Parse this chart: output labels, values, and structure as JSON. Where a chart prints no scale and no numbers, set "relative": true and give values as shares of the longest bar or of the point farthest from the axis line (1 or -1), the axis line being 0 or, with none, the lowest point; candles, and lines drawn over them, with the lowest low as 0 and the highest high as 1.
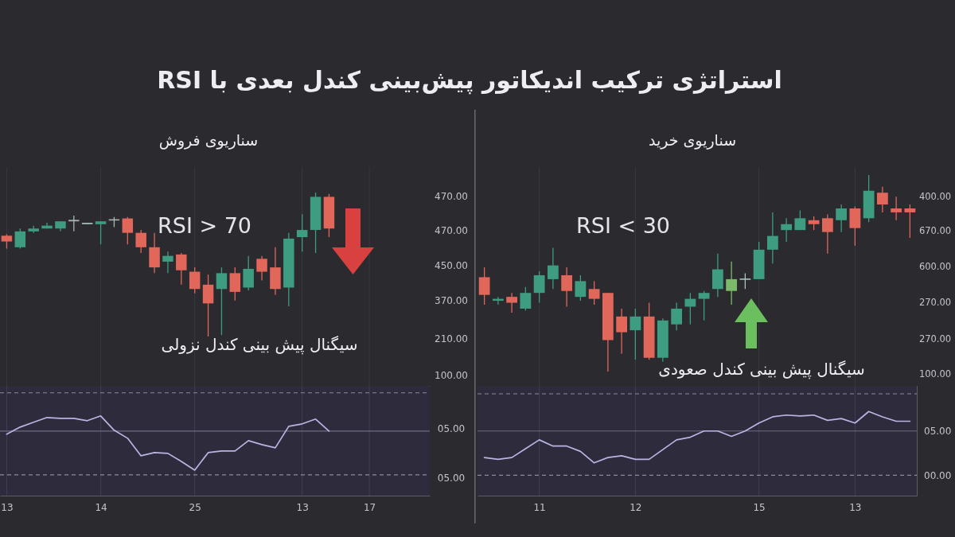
{
  "chart_data": [
    {
      "type": "other",
      "title": "استراتژی ترکیب اندیکاتور پیش‌بینی کندل بعدی با RSI"
    },
    {
      "type": "candlestick",
      "title": "سناریوی فروش",
      "relative": true,
      "categories": [
        "13",
        null,
        null,
        null,
        null,
        null,
        null,
        "14",
        null,
        null,
        null,
        null,
        null,
        null,
        "25",
        null,
        null,
        null,
        null,
        null,
        null,
        null,
        "13",
        null,
        null,
        null,
        null,
        "17",
        null,
        null,
        null,
        null
      ],
      "ohlc": [
        [
          0.7,
          0.71,
          0.61,
          0.66
        ],
        [
          0.62,
          0.75,
          0.61,
          0.73
        ],
        [
          0.73,
          0.77,
          0.72,
          0.75
        ],
        [
          0.75,
          0.79,
          0.75,
          0.77
        ],
        [
          0.75,
          0.8,
          0.73,
          0.8
        ],
        [
          0.8,
          0.84,
          0.73,
          0.81
        ],
        [
          0.78,
          0.79,
          0.78,
          0.79
        ],
        [
          0.78,
          0.8,
          0.64,
          0.8
        ],
        [
          0.81,
          0.83,
          0.76,
          0.81
        ],
        [
          0.82,
          0.83,
          0.64,
          0.72
        ],
        [
          0.72,
          0.74,
          0.58,
          0.62
        ],
        [
          0.62,
          0.72,
          0.44,
          0.48
        ],
        [
          0.52,
          0.59,
          0.44,
          0.56
        ],
        [
          0.57,
          0.58,
          0.36,
          0.46
        ],
        [
          0.45,
          0.48,
          0.3,
          0.33
        ],
        [
          0.36,
          0.43,
          0,
          0.23
        ],
        [
          0.33,
          0.48,
          0.01,
          0.44
        ],
        [
          0.44,
          0.48,
          0.25,
          0.31
        ],
        [
          0.34,
          0.56,
          0.32,
          0.47
        ],
        [
          0.54,
          0.56,
          0.39,
          0.45
        ],
        [
          0.48,
          0.62,
          0.29,
          0.33
        ],
        [
          0.34,
          0.72,
          0.21,
          0.68
        ],
        [
          0.69,
          0.85,
          0.59,
          0.74
        ],
        [
          0.74,
          1,
          0.58,
          0.97
        ],
        [
          0.97,
          0.99,
          0.69,
          0.75
        ],
        null,
        null,
        null,
        null,
        null,
        null,
        null
      ],
      "colors": [
        "#e2675b",
        "#3e9c80",
        "#3e9c80",
        "#3e9c80",
        "#3e9c80",
        "#a9b5b0",
        "#a9b5b0",
        "#3e9c80",
        "#a9b5b0",
        "#e2675b",
        "#e2675b",
        "#e2675b",
        "#3e9c80",
        "#e2675b",
        "#e2675b",
        "#e2675b",
        "#3e9c80",
        "#e2675b",
        "#3e9c80",
        "#e2675b",
        "#e2675b",
        "#3e9c80",
        "#3e9c80",
        "#3e9c80",
        "#e2675b",
        null,
        null,
        null,
        null,
        null,
        null,
        null
      ],
      "grid": "x",
      "tick_labels": false,
      "annotations": [
        "RSI > 70",
        "سیگنال پیش بینی کندل نزولی",
        "470.00",
        "470.00",
        "450.00",
        "370.00",
        "210.00",
        "100.00"
      ]
    },
    {
      "type": "line",
      "relative": true,
      "categories": [
        "13",
        null,
        null,
        null,
        null,
        null,
        null,
        "14",
        null,
        null,
        null,
        null,
        null,
        null,
        "25",
        null,
        null,
        null,
        null,
        null,
        null,
        null,
        "13",
        null,
        null,
        null,
        null,
        "17",
        null,
        null,
        null,
        null
      ],
      "values": [
        0.77,
        0.86,
        0.92,
        0.98,
        0.97,
        0.97,
        0.94,
        1,
        0.82,
        0.72,
        0.5,
        0.54,
        0.53,
        0.43,
        0.32,
        0.54,
        0.56,
        0.56,
        0.69,
        0.64,
        0.6,
        0.87,
        0.9,
        0.96,
        0.81,
        null,
        null,
        null,
        null,
        null,
        null,
        null
      ],
      "color": "#b9b5e3",
      "grid": "x",
      "tick_labels": "x",
      "ref_lines": [
        {
          "axis": "y",
          "value": 1.29,
          "line_style": "dashed",
          "color": "#8d899e"
        },
        {
          "axis": "y",
          "value": 0.81,
          "line_style": "solid",
          "color": "#6f6b82"
        },
        {
          "axis": "y",
          "value": 0.26,
          "line_style": "dashed",
          "color": "#8d899e"
        }
      ],
      "annotations": [
        "05.00",
        "05.00"
      ]
    },
    {
      "type": "candlestick",
      "title": "سناریوی خرید",
      "relative": true,
      "categories": [
        null,
        null,
        null,
        null,
        "11",
        null,
        null,
        null,
        null,
        null,
        null,
        "12",
        null,
        null,
        null,
        null,
        null,
        null,
        null,
        null,
        "15",
        null,
        null,
        null,
        null,
        null,
        null,
        "13",
        null,
        null,
        null,
        null
      ],
      "ohlc": [
        [
          0.48,
          0.53,
          0.34,
          0.39
        ],
        [
          0.36,
          0.38,
          0.34,
          0.37
        ],
        [
          0.38,
          0.4,
          0.3,
          0.35
        ],
        [
          0.32,
          0.43,
          0.31,
          0.4
        ],
        [
          0.4,
          0.51,
          0.35,
          0.49
        ],
        [
          0.47,
          0.63,
          0.42,
          0.54
        ],
        [
          0.49,
          0.53,
          0.33,
          0.41
        ],
        [
          0.38,
          0.49,
          0.36,
          0.46
        ],
        [
          0.42,
          0.46,
          0.34,
          0.37
        ],
        [
          0.4,
          0.4,
          0,
          0.16
        ],
        [
          0.28,
          0.32,
          0.09,
          0.2
        ],
        [
          0.21,
          0.32,
          0.06,
          0.28
        ],
        [
          0.28,
          0.35,
          0.06,
          0.07
        ],
        [
          0.07,
          0.27,
          0.05,
          0.26
        ],
        [
          0.24,
          0.35,
          0.21,
          0.32
        ],
        [
          0.33,
          0.4,
          0.24,
          0.37
        ],
        [
          0.37,
          0.41,
          0.26,
          0.4
        ],
        [
          0.42,
          0.6,
          0.38,
          0.52
        ],
        [
          0.41,
          0.56,
          0.34,
          0.47
        ],
        [
          0.47,
          0.5,
          0.42,
          0.47
        ],
        [
          0.47,
          0.66,
          0.47,
          0.62
        ],
        [
          0.62,
          0.81,
          0.55,
          0.69
        ],
        [
          0.72,
          0.78,
          0.66,
          0.75
        ],
        [
          0.72,
          0.82,
          0.72,
          0.78
        ],
        [
          0.77,
          0.79,
          0.72,
          0.75
        ],
        [
          0.78,
          0.8,
          0.6,
          0.71
        ],
        [
          0.77,
          0.85,
          0.71,
          0.83
        ],
        [
          0.83,
          0.84,
          0.64,
          0.73
        ],
        [
          0.78,
          1,
          0.76,
          0.92
        ],
        [
          0.91,
          0.94,
          0.81,
          0.85
        ],
        [
          0.83,
          0.89,
          0.77,
          0.81
        ],
        [
          0.83,
          0.85,
          0.68,
          0.81
        ]
      ],
      "colors": [
        "#e2675b",
        "#3e9c80",
        "#e2675b",
        "#3e9c80",
        "#3e9c80",
        "#3e9c80",
        "#e2675b",
        "#3e9c80",
        "#e2675b",
        "#e2675b",
        "#e2675b",
        "#3e9c80",
        "#e2675b",
        "#3e9c80",
        "#3e9c80",
        "#3e9c80",
        "#3e9c80",
        "#3e9c80",
        "#7db96b",
        "#a9c3bd",
        "#3e9c80",
        "#3e9c80",
        "#3e9c80",
        "#3e9c80",
        "#e2675b",
        "#e2675b",
        "#3e9c80",
        "#e2675b",
        "#3e9c80",
        "#e2675b",
        "#e2675b",
        "#e2675b"
      ],
      "grid": "x",
      "tick_labels": false,
      "annotations": [
        "RSI < 30",
        "سیگنال پیش بینی کندل صعودی",
        "400.00",
        "670.00",
        "600.00",
        "270.00",
        "270.00",
        "100.00"
      ]
    },
    {
      "type": "line",
      "categories": [
        null,
        null,
        null,
        null,
        "11",
        null,
        null,
        null,
        null,
        null,
        null,
        "12",
        null,
        null,
        null,
        null,
        null,
        null,
        null,
        null,
        "15",
        null,
        null,
        null,
        null,
        null,
        null,
        "13",
        null,
        null,
        null,
        null
      ],
      "values": [
        2.0,
        1.8,
        2.0,
        3.0,
        4.0,
        3.3,
        3.3,
        2.7,
        1.4,
        2.0,
        2.2,
        1.8,
        1.8,
        2.9,
        4.0,
        4.3,
        5.0,
        5.0,
        4.4,
        5.0,
        5.9,
        6.6,
        6.8,
        6.7,
        6.8,
        6.2,
        6.4,
        5.9,
        7.2,
        6.6,
        6.1,
        6.1
      ],
      "color": "#b9b5e3",
      "ylim": [
        -2.3,
        10.1
      ],
      "yticks": [
        {
          "value": 0,
          "label": "00.00"
        },
        {
          "value": 5,
          "label": "05.00"
        }
      ],
      "grid": "x",
      "ref_lines": [
        {
          "axis": "y",
          "value": 9.2,
          "line_style": "dashed",
          "color": "#8d899e"
        },
        {
          "axis": "y",
          "value": 5,
          "line_style": "solid",
          "color": "#6f6b82"
        },
        {
          "axis": "y",
          "value": 0,
          "line_style": "dashed",
          "color": "#8d899e"
        }
      ]
    }
  ]
}
